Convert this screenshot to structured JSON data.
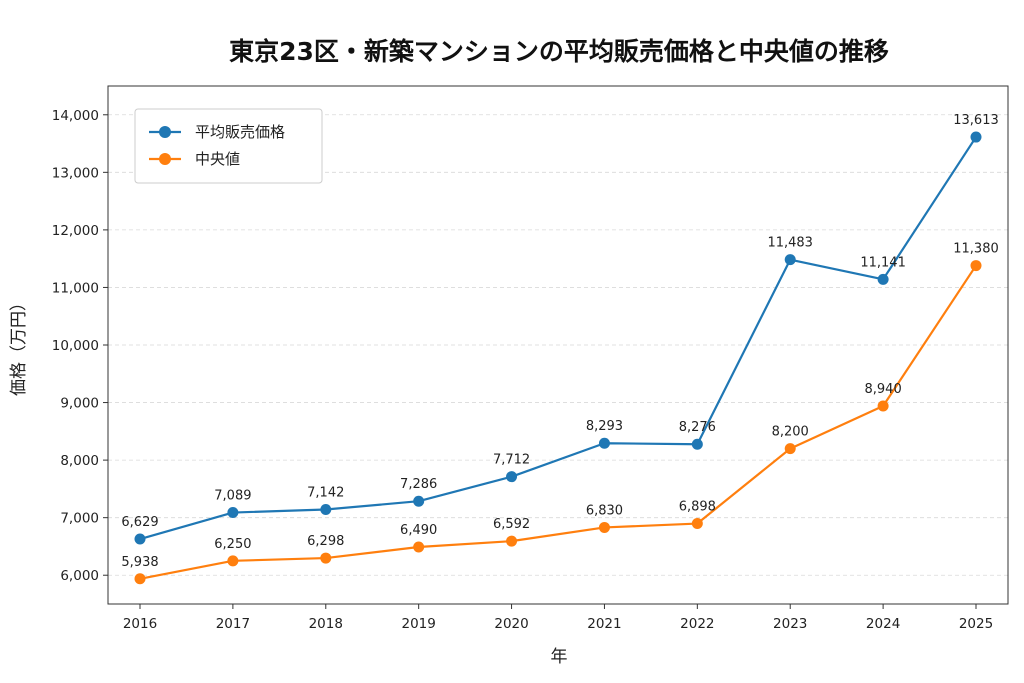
{
  "chart_data": {
    "type": "line",
    "title": "東京23区・新築マンションの平均販売価格と中央値の推移",
    "xlabel": "年",
    "ylabel": "価格（万円）",
    "x": [
      "2016",
      "2017",
      "2018",
      "2019",
      "2020",
      "2021",
      "2022",
      "2023",
      "2024",
      "2025"
    ],
    "ylim": [
      5500,
      14500
    ],
    "yticks": [
      6000,
      7000,
      8000,
      9000,
      10000,
      11000,
      12000,
      13000,
      14000
    ],
    "ytick_labels": [
      "6,000",
      "7,000",
      "8,000",
      "9,000",
      "10,000",
      "11,000",
      "12,000",
      "13,000",
      "14,000"
    ],
    "grid": "horizontal-dashed",
    "legend_position": "top-left",
    "series": [
      {
        "name": "平均販売価格",
        "color": "#1f77b4",
        "values": [
          6629,
          7089,
          7142,
          7286,
          7712,
          8293,
          8276,
          11483,
          11141,
          13613
        ],
        "labels": [
          "6,629",
          "7,089",
          "7,142",
          "7,286",
          "7,712",
          "8,293",
          "8,276",
          "11,483",
          "11,141",
          "13,613"
        ]
      },
      {
        "name": "中央値",
        "color": "#ff7f0e",
        "values": [
          5938,
          6250,
          6298,
          6490,
          6592,
          6830,
          6898,
          8200,
          8940,
          11380
        ],
        "labels": [
          "5,938",
          "6,250",
          "6,298",
          "6,490",
          "6,592",
          "6,830",
          "6,898",
          "8,200",
          "8,940",
          "11,380"
        ]
      }
    ]
  }
}
